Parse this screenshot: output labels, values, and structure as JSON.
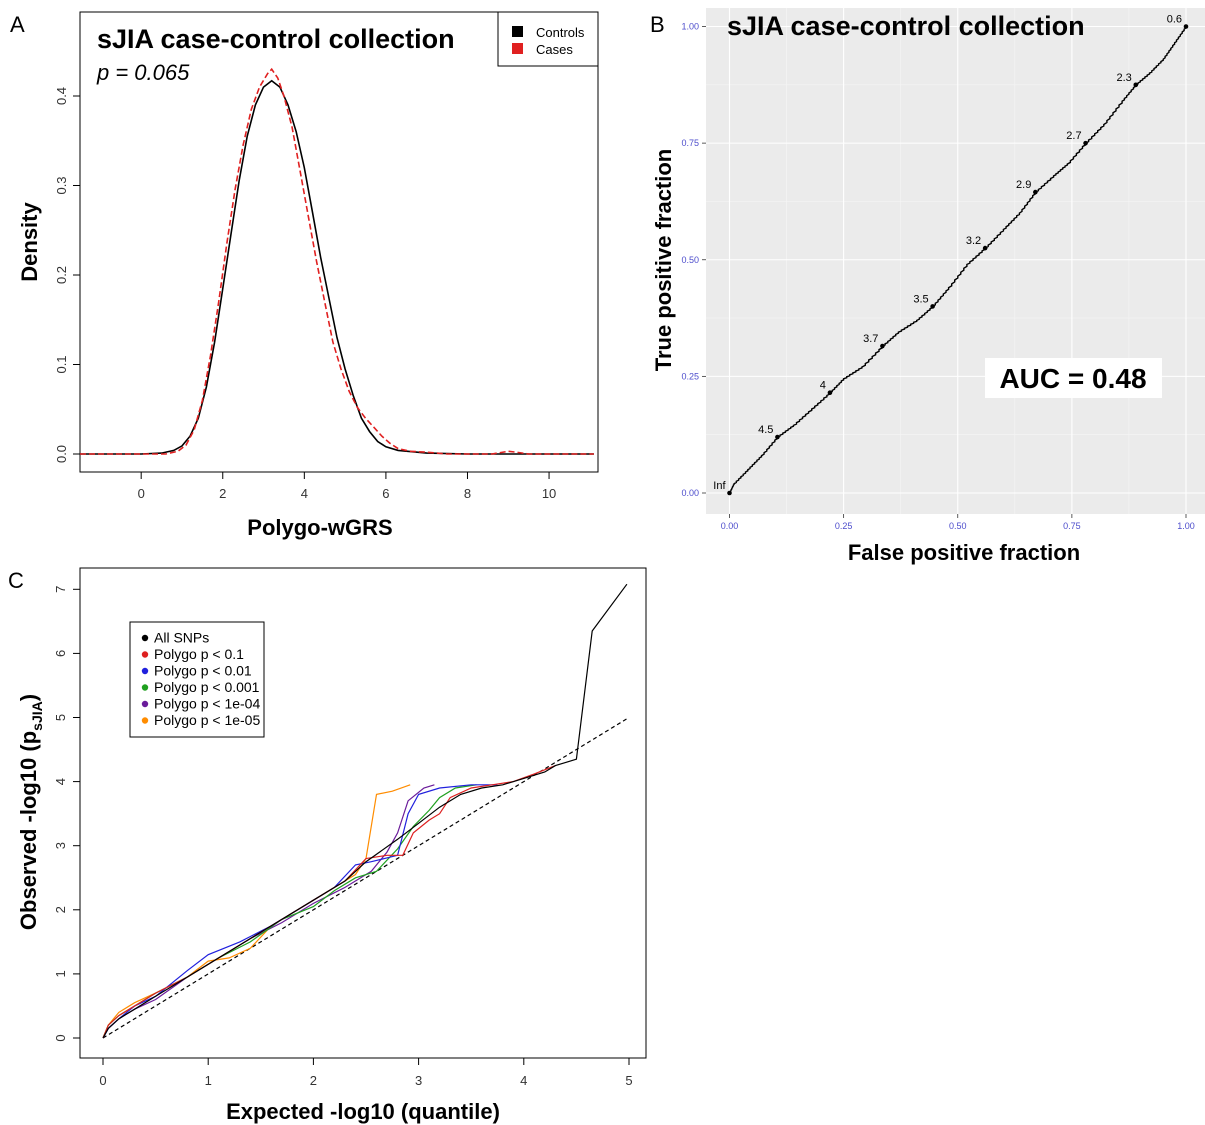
{
  "chart_data": [
    {
      "panel": "A",
      "type": "line",
      "title": "sJIA case-control collection",
      "subtitle": "p = 0.065",
      "xlabel": "Polygo-wGRS",
      "ylabel": "Density",
      "xlim": [
        -1.5,
        11.2
      ],
      "ylim": [
        0,
        0.43
      ],
      "xticks": [
        "0",
        "2",
        "4",
        "6",
        "8",
        "10"
      ],
      "yticks": [
        "0.0",
        "0.1",
        "0.2",
        "0.3",
        "0.4"
      ],
      "legend": {
        "position": "top-right",
        "entries": [
          "Controls",
          "Cases"
        ]
      },
      "series": [
        {
          "name": "Controls",
          "color": "#000000",
          "dash": false,
          "points": [
            [
              -1.5,
              0
            ],
            [
              0,
              0
            ],
            [
              0.5,
              0.001
            ],
            [
              0.8,
              0.004
            ],
            [
              1.0,
              0.009
            ],
            [
              1.2,
              0.02
            ],
            [
              1.4,
              0.04
            ],
            [
              1.6,
              0.075
            ],
            [
              1.8,
              0.125
            ],
            [
              2.0,
              0.185
            ],
            [
              2.2,
              0.245
            ],
            [
              2.4,
              0.305
            ],
            [
              2.6,
              0.355
            ],
            [
              2.8,
              0.39
            ],
            [
              3.0,
              0.41
            ],
            [
              3.2,
              0.417
            ],
            [
              3.4,
              0.41
            ],
            [
              3.6,
              0.39
            ],
            [
              3.8,
              0.36
            ],
            [
              4.0,
              0.32
            ],
            [
              4.2,
              0.27
            ],
            [
              4.4,
              0.22
            ],
            [
              4.6,
              0.175
            ],
            [
              4.8,
              0.13
            ],
            [
              5.0,
              0.095
            ],
            [
              5.2,
              0.065
            ],
            [
              5.4,
              0.04
            ],
            [
              5.6,
              0.025
            ],
            [
              5.8,
              0.014
            ],
            [
              6.0,
              0.008
            ],
            [
              6.3,
              0.004
            ],
            [
              7.0,
              0.001
            ],
            [
              8.0,
              0
            ],
            [
              11.1,
              0
            ]
          ]
        },
        {
          "name": "Cases",
          "color": "#e02020",
          "dash": true,
          "points": [
            [
              -1.5,
              0
            ],
            [
              0,
              0
            ],
            [
              0.6,
              0
            ],
            [
              0.9,
              0.003
            ],
            [
              1.1,
              0.01
            ],
            [
              1.3,
              0.027
            ],
            [
              1.5,
              0.06
            ],
            [
              1.7,
              0.11
            ],
            [
              1.9,
              0.17
            ],
            [
              2.1,
              0.235
            ],
            [
              2.3,
              0.295
            ],
            [
              2.5,
              0.345
            ],
            [
              2.7,
              0.385
            ],
            [
              2.9,
              0.41
            ],
            [
              3.1,
              0.425
            ],
            [
              3.2,
              0.43
            ],
            [
              3.35,
              0.42
            ],
            [
              3.5,
              0.4
            ],
            [
              3.7,
              0.365
            ],
            [
              3.9,
              0.315
            ],
            [
              4.1,
              0.265
            ],
            [
              4.3,
              0.215
            ],
            [
              4.5,
              0.17
            ],
            [
              4.7,
              0.125
            ],
            [
              4.9,
              0.095
            ],
            [
              5.1,
              0.07
            ],
            [
              5.3,
              0.052
            ],
            [
              5.5,
              0.04
            ],
            [
              5.7,
              0.03
            ],
            [
              5.9,
              0.02
            ],
            [
              6.1,
              0.012
            ],
            [
              6.3,
              0.006
            ],
            [
              6.6,
              0.003
            ],
            [
              7.0,
              0.002
            ],
            [
              7.5,
              0
            ],
            [
              8.6,
              0
            ],
            [
              9.0,
              0.003
            ],
            [
              9.2,
              0.002
            ],
            [
              9.5,
              0
            ],
            [
              11.1,
              0
            ]
          ]
        }
      ]
    },
    {
      "panel": "B",
      "type": "line",
      "title": "sJIA case-control collection",
      "xlabel": "False positive fraction",
      "ylabel": "True positive fraction",
      "xlim": [
        -0.05,
        1.05
      ],
      "ylim": [
        -0.05,
        1.05
      ],
      "xticks": [
        "0.00",
        "0.25",
        "0.50",
        "0.75",
        "1.00"
      ],
      "yticks": [
        "0.00",
        "0.25",
        "0.50",
        "0.75",
        "1.00"
      ],
      "grid": true,
      "annotation": "AUC = 0.48",
      "cutoffs": [
        {
          "label": "Inf",
          "x": 0.0,
          "y": 0.0
        },
        {
          "label": "4.5",
          "x": 0.105,
          "y": 0.12
        },
        {
          "label": "4",
          "x": 0.22,
          "y": 0.215
        },
        {
          "label": "3.7",
          "x": 0.335,
          "y": 0.315
        },
        {
          "label": "3.5",
          "x": 0.445,
          "y": 0.4
        },
        {
          "label": "3.2",
          "x": 0.56,
          "y": 0.525
        },
        {
          "label": "2.9",
          "x": 0.67,
          "y": 0.645
        },
        {
          "label": "2.7",
          "x": 0.78,
          "y": 0.75
        },
        {
          "label": "2.3",
          "x": 0.89,
          "y": 0.875
        },
        {
          "label": "0.6",
          "x": 1.0,
          "y": 1.0
        }
      ],
      "roc": [
        [
          0,
          0
        ],
        [
          0.01,
          0.02
        ],
        [
          0.04,
          0.05
        ],
        [
          0.07,
          0.08
        ],
        [
          0.105,
          0.12
        ],
        [
          0.14,
          0.145
        ],
        [
          0.18,
          0.18
        ],
        [
          0.22,
          0.215
        ],
        [
          0.25,
          0.245
        ],
        [
          0.29,
          0.27
        ],
        [
          0.335,
          0.315
        ],
        [
          0.37,
          0.345
        ],
        [
          0.41,
          0.37
        ],
        [
          0.445,
          0.4
        ],
        [
          0.48,
          0.44
        ],
        [
          0.52,
          0.49
        ],
        [
          0.56,
          0.525
        ],
        [
          0.6,
          0.565
        ],
        [
          0.635,
          0.6
        ],
        [
          0.67,
          0.645
        ],
        [
          0.71,
          0.68
        ],
        [
          0.74,
          0.705
        ],
        [
          0.78,
          0.75
        ],
        [
          0.82,
          0.79
        ],
        [
          0.86,
          0.84
        ],
        [
          0.89,
          0.875
        ],
        [
          0.92,
          0.9
        ],
        [
          0.95,
          0.93
        ],
        [
          0.975,
          0.965
        ],
        [
          1.0,
          1.0
        ]
      ]
    },
    {
      "panel": "C",
      "type": "line",
      "xlabel": "Expected -log10 (quantile)",
      "ylabel_main": "Observed -log10 (p",
      "ylabel_sub": "sJIA",
      "ylabel_end": ")",
      "xlim": [
        -0.05,
        5.05
      ],
      "ylim": [
        -0.1,
        7.25
      ],
      "xticks": [
        "0",
        "1",
        "2",
        "3",
        "4",
        "5"
      ],
      "yticks": [
        "0",
        "1",
        "2",
        "3",
        "4",
        "5",
        "6",
        "7"
      ],
      "legend": {
        "position": "top-left",
        "entries": [
          "All SNPs",
          "Polygo p < 0.1",
          "Polygo p < 0.01",
          "Polygo p < 0.001",
          "Polygo p < 1e-04",
          "Polygo p < 1e-05"
        ]
      },
      "reference_line": [
        [
          0,
          0
        ],
        [
          5,
          5
        ]
      ],
      "series": [
        {
          "name": "All SNPs",
          "color": "#000000",
          "points": [
            [
              0,
              0
            ],
            [
              0.05,
              0.15
            ],
            [
              0.15,
              0.3
            ],
            [
              0.3,
              0.45
            ],
            [
              0.5,
              0.65
            ],
            [
              0.8,
              0.95
            ],
            [
              1.1,
              1.25
            ],
            [
              1.4,
              1.55
            ],
            [
              1.7,
              1.85
            ],
            [
              2.0,
              2.15
            ],
            [
              2.3,
              2.45
            ],
            [
              2.5,
              2.75
            ],
            [
              2.8,
              3.1
            ],
            [
              3.0,
              3.35
            ],
            [
              3.2,
              3.6
            ],
            [
              3.4,
              3.8
            ],
            [
              3.6,
              3.9
            ],
            [
              3.8,
              3.95
            ],
            [
              4.0,
              4.05
            ],
            [
              4.2,
              4.15
            ],
            [
              4.3,
              4.25
            ],
            [
              4.5,
              4.35
            ],
            [
              4.65,
              6.35
            ],
            [
              4.98,
              7.08
            ]
          ]
        },
        {
          "name": "Polygo p < 0.1",
          "color": "#dd2020",
          "points": [
            [
              0,
              0
            ],
            [
              0.05,
              0.2
            ],
            [
              0.15,
              0.35
            ],
            [
              0.3,
              0.5
            ],
            [
              0.5,
              0.7
            ],
            [
              0.8,
              0.95
            ],
            [
              1.1,
              1.25
            ],
            [
              1.4,
              1.55
            ],
            [
              1.7,
              1.85
            ],
            [
              2.0,
              2.15
            ],
            [
              2.3,
              2.45
            ],
            [
              2.5,
              2.8
            ],
            [
              2.7,
              2.85
            ],
            [
              2.85,
              2.85
            ],
            [
              2.95,
              3.2
            ],
            [
              3.1,
              3.4
            ],
            [
              3.2,
              3.5
            ],
            [
              3.3,
              3.75
            ],
            [
              3.5,
              3.9
            ],
            [
              3.7,
              3.95
            ],
            [
              3.9,
              4.0
            ],
            [
              4.1,
              4.12
            ],
            [
              4.3,
              4.25
            ]
          ]
        },
        {
          "name": "Polygo p < 0.01",
          "color": "#2020dd",
          "points": [
            [
              0,
              0
            ],
            [
              0.05,
              0.15
            ],
            [
              0.15,
              0.3
            ],
            [
              0.3,
              0.5
            ],
            [
              0.5,
              0.65
            ],
            [
              0.8,
              1.05
            ],
            [
              1.0,
              1.3
            ],
            [
              1.3,
              1.5
            ],
            [
              1.6,
              1.75
            ],
            [
              1.9,
              2.05
            ],
            [
              2.2,
              2.35
            ],
            [
              2.4,
              2.7
            ],
            [
              2.55,
              2.75
            ],
            [
              2.8,
              2.85
            ],
            [
              2.9,
              3.5
            ],
            [
              3.0,
              3.8
            ],
            [
              3.2,
              3.9
            ],
            [
              3.5,
              3.95
            ],
            [
              3.75,
              3.95
            ]
          ]
        },
        {
          "name": "Polygo p < 0.001",
          "color": "#20a020",
          "points": [
            [
              0,
              0
            ],
            [
              0.05,
              0.2
            ],
            [
              0.15,
              0.35
            ],
            [
              0.3,
              0.5
            ],
            [
              0.5,
              0.7
            ],
            [
              0.8,
              0.95
            ],
            [
              1.1,
              1.25
            ],
            [
              1.4,
              1.5
            ],
            [
              1.7,
              1.85
            ],
            [
              2.0,
              2.05
            ],
            [
              2.2,
              2.3
            ],
            [
              2.4,
              2.5
            ],
            [
              2.6,
              2.6
            ],
            [
              2.8,
              2.95
            ],
            [
              2.95,
              3.3
            ],
            [
              3.1,
              3.55
            ],
            [
              3.2,
              3.75
            ],
            [
              3.35,
              3.9
            ],
            [
              3.55,
              3.95
            ]
          ]
        },
        {
          "name": "Polygo p < 1e-04",
          "color": "#6a1b9a",
          "points": [
            [
              0,
              0
            ],
            [
              0.05,
              0.15
            ],
            [
              0.15,
              0.3
            ],
            [
              0.3,
              0.45
            ],
            [
              0.5,
              0.6
            ],
            [
              0.8,
              0.95
            ],
            [
              1.1,
              1.25
            ],
            [
              1.4,
              1.55
            ],
            [
              1.7,
              1.8
            ],
            [
              2.0,
              2.1
            ],
            [
              2.3,
              2.35
            ],
            [
              2.55,
              2.6
            ],
            [
              2.7,
              2.9
            ],
            [
              2.8,
              3.2
            ],
            [
              2.9,
              3.7
            ],
            [
              3.05,
              3.9
            ],
            [
              3.15,
              3.95
            ]
          ]
        },
        {
          "name": "Polygo p < 1e-05",
          "color": "#ff8c00",
          "points": [
            [
              0,
              0
            ],
            [
              0.05,
              0.2
            ],
            [
              0.15,
              0.4
            ],
            [
              0.3,
              0.55
            ],
            [
              0.5,
              0.7
            ],
            [
              0.8,
              0.95
            ],
            [
              1.0,
              1.2
            ],
            [
              1.2,
              1.25
            ],
            [
              1.4,
              1.4
            ],
            [
              1.6,
              1.75
            ],
            [
              1.9,
              2.05
            ],
            [
              2.2,
              2.35
            ],
            [
              2.4,
              2.55
            ],
            [
              2.5,
              2.8
            ],
            [
              2.6,
              3.8
            ],
            [
              2.75,
              3.85
            ],
            [
              2.92,
              3.95
            ]
          ]
        }
      ]
    }
  ]
}
